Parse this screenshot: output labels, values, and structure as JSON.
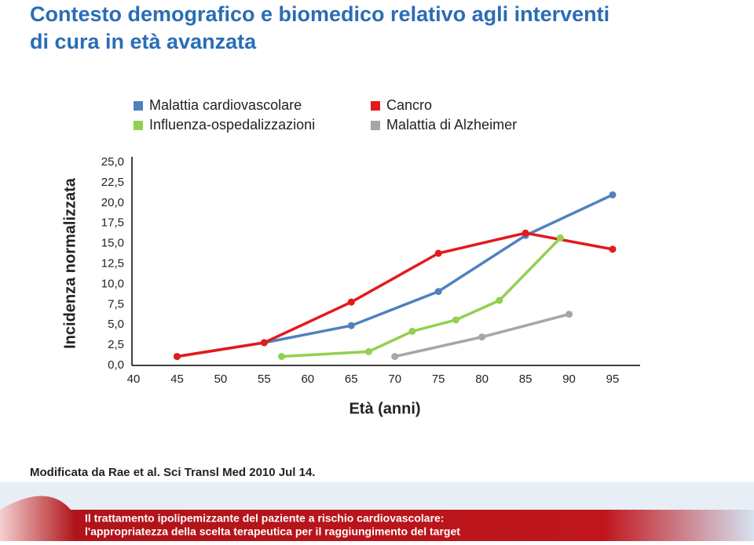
{
  "chart_data": {
    "type": "line",
    "title": "Contesto demografico e biomedico relativo agli interventi",
    "title_line2": "di cura in età avanzata",
    "y_label": "Incidenza normalizzata",
    "x_label": "Età (anni)",
    "note": "Modificata da Rae et al. Sci Transl Med 2010 Jul 14.",
    "banner": [
      "Il trattamento ipolipemizzante del paziente a rischio cardiovascolare:",
      "l'appropriatezza della scelta terapeutica per il raggiungimento del target"
    ],
    "xlim": [
      40,
      95
    ],
    "xticks": [
      40,
      45,
      50,
      55,
      60,
      65,
      70,
      75,
      80,
      85,
      90,
      95
    ],
    "ylim": [
      0,
      25
    ],
    "yticks": [
      {
        "value": 0,
        "label": "0,0"
      },
      {
        "value": 2.5,
        "label": "2,5"
      },
      {
        "value": 5,
        "label": "5,0"
      },
      {
        "value": 7.5,
        "label": "7,5"
      },
      {
        "value": 10,
        "label": "10,0"
      },
      {
        "value": 12.5,
        "label": "12,5"
      },
      {
        "value": 15,
        "label": "15,0"
      },
      {
        "value": 17.5,
        "label": "17,5"
      },
      {
        "value": 20,
        "label": "20,0"
      },
      {
        "value": 22.5,
        "label": "22,5"
      },
      {
        "value": 25,
        "label": "25,0"
      }
    ],
    "series": [
      {
        "name": "Malattia cardiovascolare",
        "color": "#4f81bd",
        "x": [
          45,
          55,
          65,
          75,
          85,
          95
        ],
        "values": [
          1.1,
          2.8,
          4.9,
          9.1,
          16.0,
          21.0
        ]
      },
      {
        "name": "Cancro",
        "color": "#e31a1c",
        "x": [
          45,
          55,
          65,
          75,
          85,
          95
        ],
        "values": [
          1.1,
          2.8,
          7.8,
          13.8,
          16.3,
          14.3
        ]
      },
      {
        "name": "Influenza-ospedalizzazioni",
        "color": "#92d050",
        "x": [
          57,
          67,
          72,
          77,
          82,
          89
        ],
        "values": [
          1.1,
          1.7,
          4.2,
          5.6,
          8.0,
          15.7
        ]
      },
      {
        "name": "Malattia di Alzheimer",
        "color": "#a6a6a6",
        "x": [
          70,
          80,
          90
        ],
        "values": [
          1.1,
          3.5,
          6.3
        ]
      }
    ]
  }
}
